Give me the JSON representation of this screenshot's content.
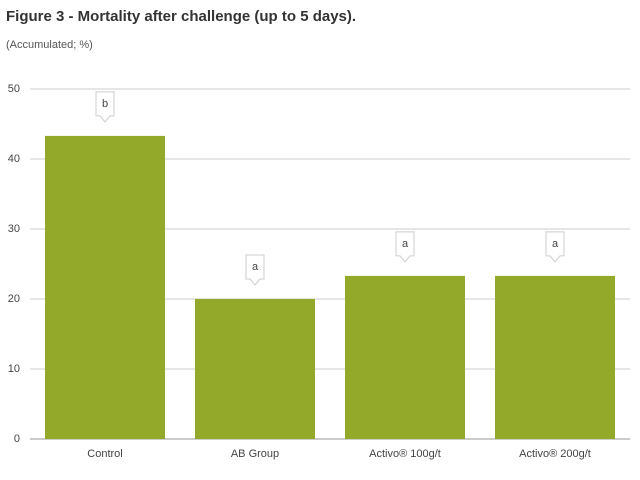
{
  "chart_data": {
    "type": "bar",
    "title": "Figure 3 - Mortality after challenge (up to 5 days).",
    "subtitle": "(Accumulated; %)",
    "categories": [
      "Control",
      "AB Group",
      "Activo® 100g/t",
      "Activo® 200g/t"
    ],
    "values": [
      43.3,
      20,
      23.3,
      23.3
    ],
    "annotations": [
      "b",
      "a",
      "a",
      "a"
    ],
    "color": "#92a929",
    "ylim": [
      0,
      50
    ],
    "yticks": [
      0,
      10,
      20,
      30,
      40,
      50
    ],
    "grid": true
  }
}
